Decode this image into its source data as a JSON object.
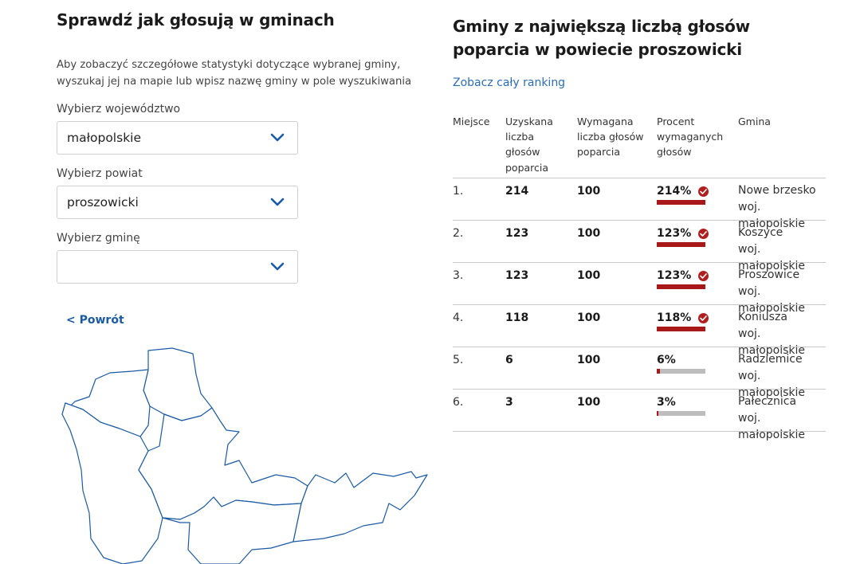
{
  "left": {
    "title": "Sprawdź jak głosują w gminach",
    "intro": "Aby zobaczyć szczegółowe statystyki dotyczące wybranej gminy, wyszukaj jej na mapie lub wpisz nazwę gminy w pole wyszukiwania",
    "voivodeship_label": "Wybierz województwo",
    "voivodeship_value": "małopolskie",
    "county_label": "Wybierz powiat",
    "county_value": "proszowicki",
    "commune_label": "Wybierz gminę",
    "commune_value": "",
    "back_label": "< Powrót",
    "icons": {
      "dropdown": "chevron-down-icon"
    },
    "colors": {
      "map_stroke": "#1a5aa6"
    }
  },
  "right": {
    "title": "Gminy z największą liczbą głosów poparcia w powiecie proszowicki",
    "ranking_link": "Zobacz cały ranking",
    "headers": {
      "place": "Miejsce",
      "obtained": "Uzyskana liczba głosów poparcia",
      "required": "Wymagana liczba głosów poparcia",
      "percent": "Procent wymaganych głosów",
      "commune": "Gmina"
    },
    "rows": [
      {
        "place": "1.",
        "obtained": "214",
        "required": "100",
        "percent": "214%",
        "fill": 1.0,
        "met": true,
        "commune": "Nowe brzesko",
        "region": "woj. małopolskie"
      },
      {
        "place": "2.",
        "obtained": "123",
        "required": "100",
        "percent": "123%",
        "fill": 1.0,
        "met": true,
        "commune": "Koszyce",
        "region": "woj. małopolskie"
      },
      {
        "place": "3.",
        "obtained": "123",
        "required": "100",
        "percent": "123%",
        "fill": 1.0,
        "met": true,
        "commune": "Proszowice",
        "region": "woj. małopolskie"
      },
      {
        "place": "4.",
        "obtained": "118",
        "required": "100",
        "percent": "118%",
        "fill": 1.0,
        "met": true,
        "commune": "Koniusza",
        "region": "woj. małopolskie"
      },
      {
        "place": "5.",
        "obtained": "6",
        "required": "100",
        "percent": "6%",
        "fill": 0.06,
        "met": false,
        "commune": "Radziemice",
        "region": "woj. małopolskie"
      },
      {
        "place": "6.",
        "obtained": "3",
        "required": "100",
        "percent": "3%",
        "fill": 0.03,
        "met": false,
        "commune": "Pałecznica",
        "region": "woj. małopolskie"
      }
    ],
    "icons": {
      "met": "check-circle-icon"
    },
    "colors": {
      "bar_fill": "#a81818",
      "bar_empty": "#bdbdbd",
      "check": "#b11e1e",
      "link": "#2d6db5"
    }
  }
}
